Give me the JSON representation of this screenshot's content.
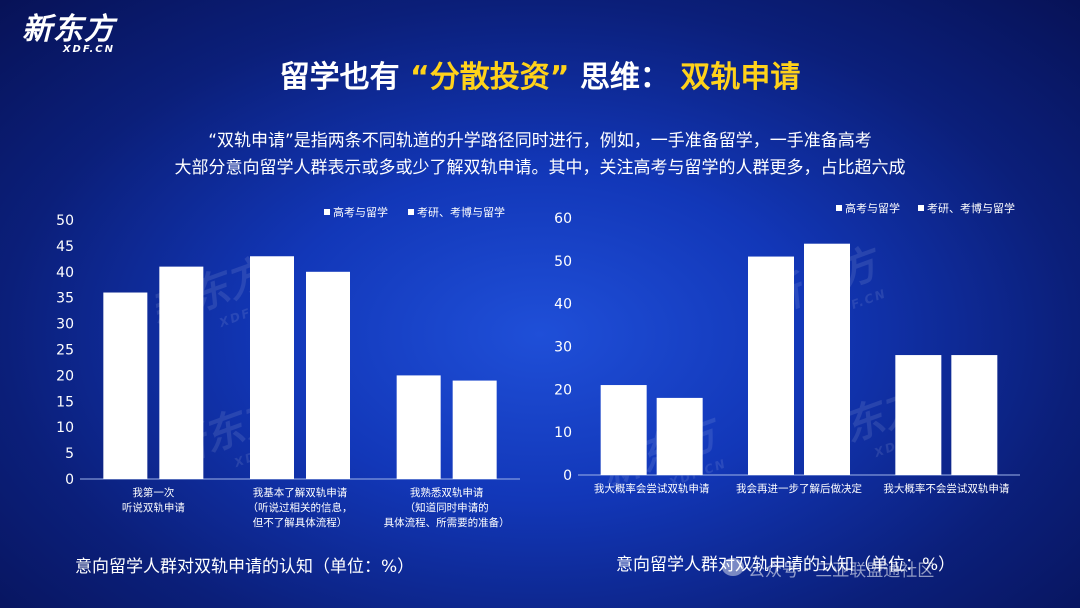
{
  "logo": {
    "main": "新东方",
    "sub": "XDF.CN"
  },
  "title": {
    "part1": "留学也有",
    "part2": "“分散投资”",
    "part3": "思维：",
    "part4": "双轨申请"
  },
  "description": {
    "line1": "“双轨申请”是指两条不同轨道的升学路径同时进行，例如，一手准备留学，一手准备高考",
    "line2": "大部分意向留学人群表示或多或少了解双轨申请。其中，关注高考与留学的人群更多，占比超六成"
  },
  "watermark": {
    "main": "新东方",
    "sub": "XDF.CN"
  },
  "wechat_watermark": "公众号 · 三亚联盟通社区",
  "colors": {
    "background": "#1237b8",
    "title_accent": "#ffd21a",
    "bar": "#ffffff"
  },
  "chart_data": [
    {
      "type": "bar",
      "title": "",
      "caption": "意向留学人群对双轨申请的认知（单位：%）",
      "xlabel": "",
      "ylabel": "",
      "ylim": [
        0,
        50
      ],
      "yticks": [
        0,
        5,
        10,
        15,
        20,
        25,
        30,
        35,
        40,
        45,
        50
      ],
      "grid": false,
      "legend_position": "top-right",
      "categories": [
        [
          "我第一次",
          "听说双轨申请"
        ],
        [
          "我基本了解双轨申请",
          "（听说过相关的信息，",
          "但不了解具体流程）"
        ],
        [
          "我熟悉双轨申请",
          "（知道同时申请的",
          "具体流程、所需要的准备）"
        ]
      ],
      "series": [
        {
          "name": "高考与留学",
          "values": [
            36,
            43,
            20
          ]
        },
        {
          "name": "考研、考博与留学",
          "values": [
            41,
            40,
            19
          ]
        }
      ]
    },
    {
      "type": "bar",
      "title": "",
      "caption": "意向留学人群对双轨申请的认知（单位：%）",
      "xlabel": "",
      "ylabel": "",
      "ylim": [
        0,
        60
      ],
      "yticks": [
        0,
        10,
        20,
        30,
        40,
        50,
        60
      ],
      "grid": false,
      "legend_position": "top-right",
      "categories": [
        [
          "我大概率会尝试双轨申请"
        ],
        [
          "我会再进一步了解后做决定"
        ],
        [
          "我大概率不会尝试双轨申请"
        ]
      ],
      "series": [
        {
          "name": "高考与留学",
          "values": [
            21,
            51,
            28
          ]
        },
        {
          "name": "考研、考博与留学",
          "values": [
            18,
            54,
            28
          ]
        }
      ]
    }
  ]
}
